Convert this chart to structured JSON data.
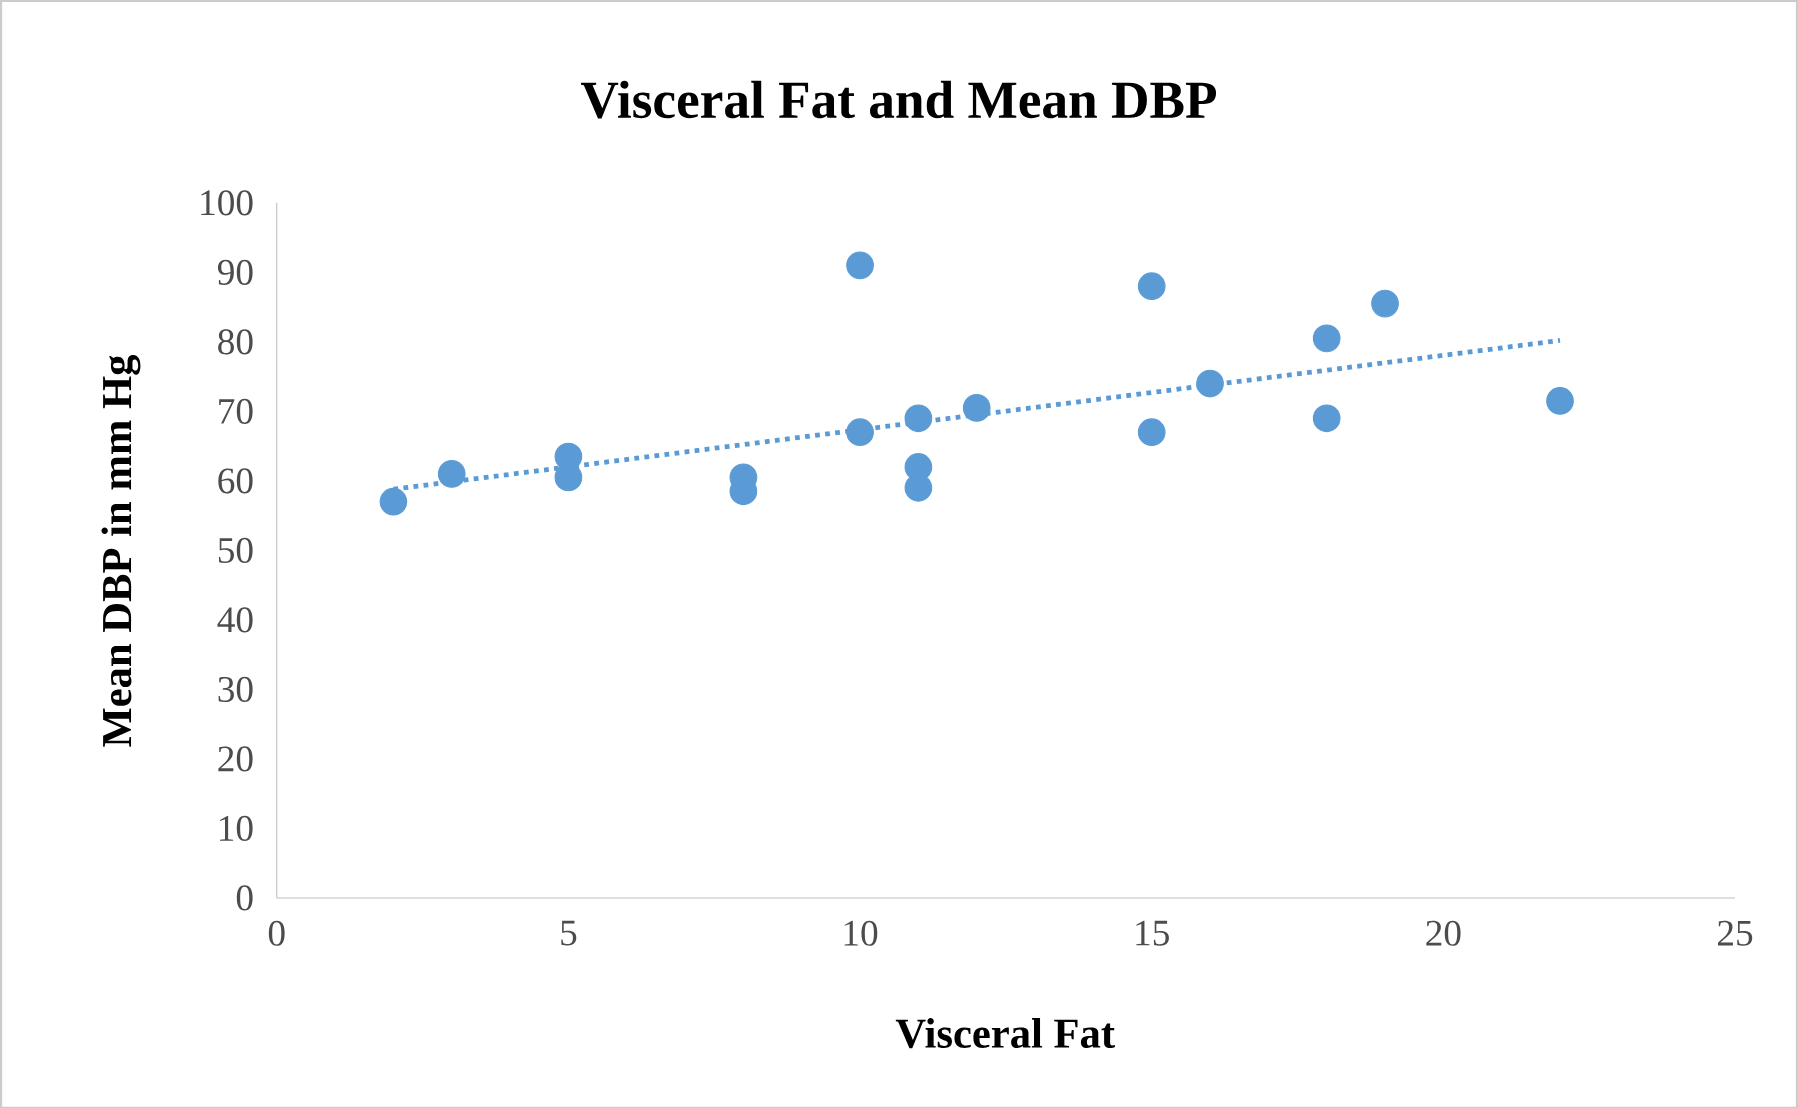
{
  "chart_data": {
    "type": "scatter",
    "title": "Visceral Fat and Mean DBP",
    "xlabel": "Visceral Fat",
    "ylabel": "Mean DBP in mm Hg",
    "xlim": [
      0,
      25
    ],
    "xticks": [
      0,
      5,
      10,
      15,
      20,
      25
    ],
    "ylim": [
      0,
      100
    ],
    "yticks": [
      0,
      10,
      20,
      30,
      40,
      50,
      60,
      70,
      80,
      90,
      100
    ],
    "series": [
      {
        "color": "#5b9bd5",
        "marker": "circle",
        "x": [
          2,
          3,
          5,
          5,
          8,
          8,
          10,
          10,
          11,
          11,
          11,
          12,
          15,
          15,
          16,
          18,
          18,
          19,
          22
        ],
        "values": [
          57,
          61,
          63.5,
          60.5,
          60.5,
          58.5,
          91,
          67,
          69,
          62,
          59,
          70.5,
          88,
          67,
          74,
          80.5,
          69,
          85.5,
          71.5
        ]
      },
      {
        "type": "line",
        "color": "#5b9bd5",
        "line_style": "dotted",
        "marker": "none",
        "x": [
          2,
          22
        ],
        "values": [
          58.8,
          80.2
        ]
      }
    ]
  }
}
